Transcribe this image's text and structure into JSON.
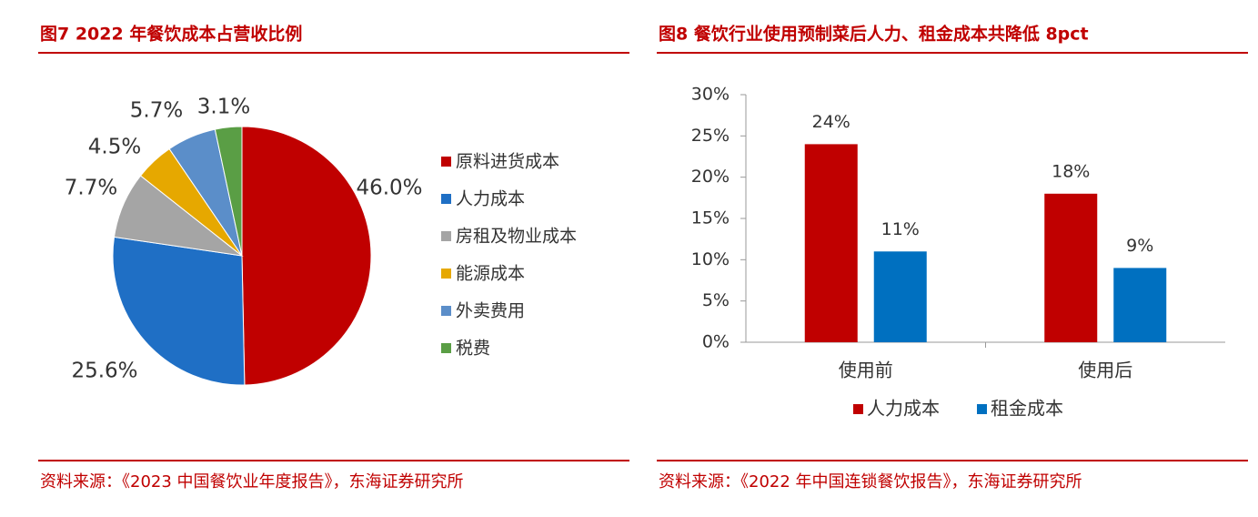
{
  "chart_data": [
    {
      "type": "pie",
      "title": "图7  2022 年餐饮成本占营收比例",
      "categories": [
        "原料进货成本",
        "人力成本",
        "房租及物业成本",
        "能源成本",
        "外卖费用",
        "税费"
      ],
      "values": [
        46.0,
        25.6,
        7.7,
        4.5,
        5.7,
        3.1
      ],
      "value_labels": [
        "46.0%",
        "25.6%",
        "7.7%",
        "4.5%",
        "5.7%",
        "3.1%"
      ],
      "colors": [
        "#c00000",
        "#1f6fc5",
        "#a5a5a5",
        "#e6a800",
        "#5b8ec9",
        "#5a9e45"
      ],
      "legend": "right",
      "source": "资料来源：《2023 中国餐饮业年度报告》，东海证券研究所"
    },
    {
      "type": "bar",
      "title": "图8  餐饮行业使用预制菜后人力、租金成本共降低 8pct",
      "categories": [
        "使用前",
        "使用后"
      ],
      "series": [
        {
          "name": "人力成本",
          "color": "#c00000",
          "values": [
            24,
            18
          ],
          "value_labels": [
            "24%",
            "18%"
          ]
        },
        {
          "name": "租金成本",
          "color": "#0070c0",
          "values": [
            11,
            9
          ],
          "value_labels": [
            "11%",
            "9%"
          ]
        }
      ],
      "ylim": [
        0,
        30
      ],
      "yticks": [
        {
          "value": 0,
          "label": "0%"
        },
        {
          "value": 5,
          "label": "5%"
        },
        {
          "value": 10,
          "label": "10%"
        },
        {
          "value": 15,
          "label": "15%"
        },
        {
          "value": 20,
          "label": "20%"
        },
        {
          "value": 25,
          "label": "25%"
        },
        {
          "value": 30,
          "label": "30%"
        }
      ],
      "legend": "bottom",
      "source": "资料来源：《2022 年中国连锁餐饮报告》，东海证券研究所"
    }
  ]
}
